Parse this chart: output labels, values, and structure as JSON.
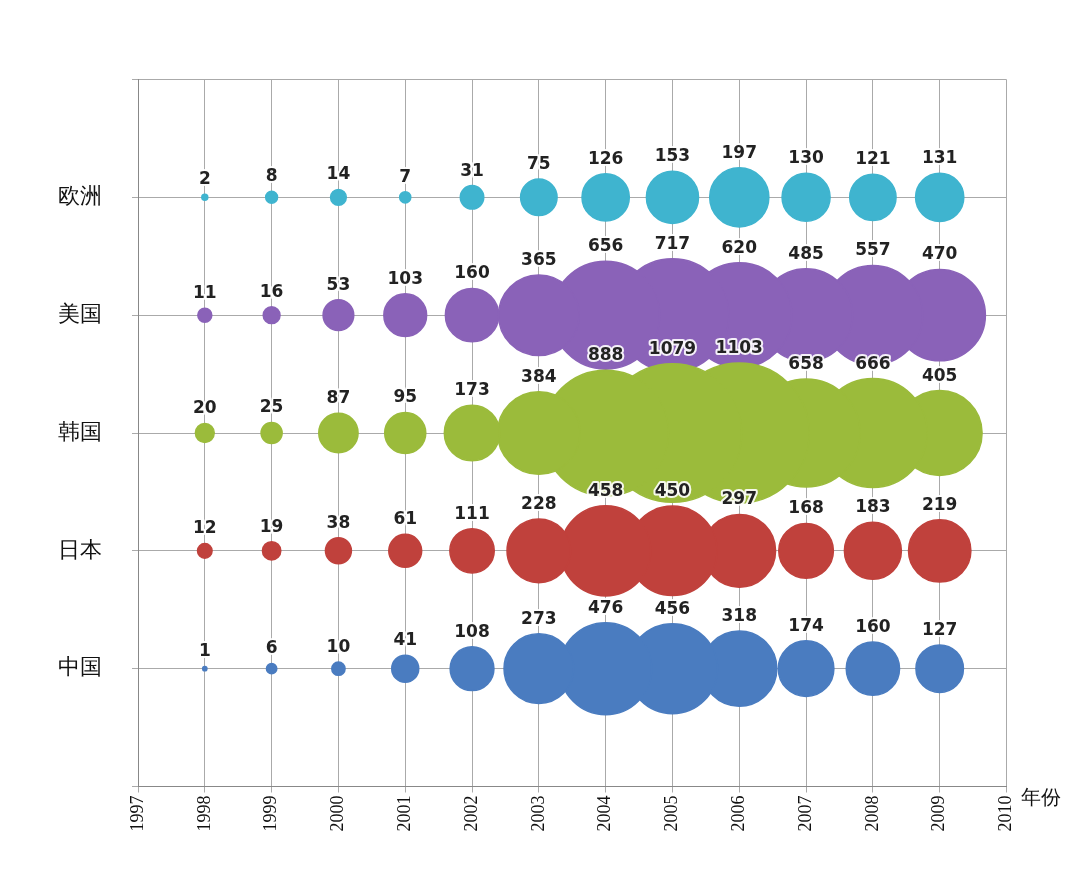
{
  "chart_data": {
    "type": "bubble",
    "orientation": "horizontal",
    "xlabel": "年份",
    "xlim": [
      1997,
      2010
    ],
    "xticks": [
      1997,
      1998,
      1999,
      2000,
      2001,
      2002,
      2003,
      2004,
      2005,
      2006,
      2007,
      2008,
      2009,
      2010
    ],
    "categories": [
      "欧洲",
      "美国",
      "韩国",
      "日本",
      "中国"
    ],
    "grid": true,
    "series": [
      {
        "colors": [
          "#3fb4cf",
          "#8a62b8",
          "#9bbb3b",
          "#c0413c",
          "#4a7cc0"
        ],
        "values": [
          1998,
          1998,
          1998,
          1998,
          1998
        ],
        "sizes": [
          2,
          11,
          20,
          12,
          1
        ],
        "value_labels": [
          "2",
          "11",
          "20",
          "12",
          "1"
        ]
      },
      {
        "colors": [
          "#3fb4cf",
          "#8a62b8",
          "#9bbb3b",
          "#c0413c",
          "#4a7cc0"
        ],
        "values": [
          1999,
          1999,
          1999,
          1999,
          1999
        ],
        "sizes": [
          8,
          16,
          25,
          19,
          6
        ],
        "value_labels": [
          "8",
          "16",
          "25",
          "19",
          "6"
        ]
      },
      {
        "colors": [
          "#3fb4cf",
          "#8a62b8",
          "#9bbb3b",
          "#c0413c",
          "#4a7cc0"
        ],
        "values": [
          2000,
          2000,
          2000,
          2000,
          2000
        ],
        "sizes": [
          14,
          53,
          87,
          38,
          10
        ],
        "value_labels": [
          "14",
          "53",
          "87",
          "38",
          "10"
        ]
      },
      {
        "colors": [
          "#3fb4cf",
          "#8a62b8",
          "#9bbb3b",
          "#c0413c",
          "#4a7cc0"
        ],
        "values": [
          2001,
          2001,
          2001,
          2001,
          2001
        ],
        "sizes": [
          7,
          103,
          95,
          61,
          41
        ],
        "value_labels": [
          "7",
          "103",
          "95",
          "61",
          "41"
        ]
      },
      {
        "colors": [
          "#3fb4cf",
          "#8a62b8",
          "#9bbb3b",
          "#c0413c",
          "#4a7cc0"
        ],
        "values": [
          2002,
          2002,
          2002,
          2002,
          2002
        ],
        "sizes": [
          31,
          160,
          173,
          111,
          108
        ],
        "value_labels": [
          "31",
          "160",
          "173",
          "111",
          "108"
        ]
      },
      {
        "colors": [
          "#3fb4cf",
          "#8a62b8",
          "#9bbb3b",
          "#c0413c",
          "#4a7cc0"
        ],
        "values": [
          2003,
          2003,
          2003,
          2003,
          2003
        ],
        "sizes": [
          75,
          365,
          384,
          228,
          273
        ],
        "value_labels": [
          "75",
          "365",
          "384",
          "228",
          "273"
        ]
      },
      {
        "colors": [
          "#3fb4cf",
          "#8a62b8",
          "#9bbb3b",
          "#c0413c",
          "#4a7cc0"
        ],
        "values": [
          2004,
          2004,
          2004,
          2004,
          2004
        ],
        "sizes": [
          126,
          656,
          888,
          458,
          476
        ],
        "value_labels": [
          "126",
          "656",
          "888",
          "458",
          "476"
        ]
      },
      {
        "colors": [
          "#3fb4cf",
          "#8a62b8",
          "#9bbb3b",
          "#c0413c",
          "#4a7cc0"
        ],
        "values": [
          2005,
          2005,
          2005,
          2005,
          2005
        ],
        "sizes": [
          153,
          717,
          1079,
          450,
          456
        ],
        "value_labels": [
          "153",
          "717",
          "1079",
          "450",
          "456"
        ]
      },
      {
        "colors": [
          "#3fb4cf",
          "#8a62b8",
          "#9bbb3b",
          "#c0413c",
          "#4a7cc0"
        ],
        "values": [
          2006,
          2006,
          2006,
          2006,
          2006
        ],
        "sizes": [
          197,
          620,
          1103,
          297,
          318
        ],
        "value_labels": [
          "197",
          "620",
          "1103",
          "297",
          "318"
        ]
      },
      {
        "colors": [
          "#3fb4cf",
          "#8a62b8",
          "#9bbb3b",
          "#c0413c",
          "#4a7cc0"
        ],
        "values": [
          2007,
          2007,
          2007,
          2007,
          2007
        ],
        "sizes": [
          130,
          485,
          658,
          168,
          174
        ],
        "value_labels": [
          "130",
          "485",
          "658",
          "168",
          "174"
        ]
      },
      {
        "colors": [
          "#3fb4cf",
          "#8a62b8",
          "#9bbb3b",
          "#c0413c",
          "#4a7cc0"
        ],
        "values": [
          2008,
          2008,
          2008,
          2008,
          2008
        ],
        "sizes": [
          121,
          557,
          666,
          183,
          160
        ],
        "value_labels": [
          "121",
          "557",
          "666",
          "183",
          "160"
        ]
      },
      {
        "colors": [
          "#3fb4cf",
          "#8a62b8",
          "#9bbb3b",
          "#c0413c",
          "#4a7cc0"
        ],
        "values": [
          2009,
          2009,
          2009,
          2009,
          2009
        ],
        "sizes": [
          131,
          470,
          405,
          219,
          127
        ],
        "value_labels": [
          "131",
          "470",
          "405",
          "219",
          "127"
        ]
      }
    ]
  }
}
